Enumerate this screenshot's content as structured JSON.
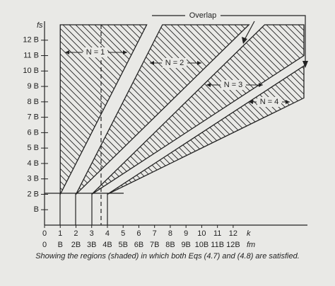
{
  "chart_data": {
    "type": "region",
    "y_label": "fs",
    "x_label": "k",
    "x2_label": "fm",
    "annotation": "Overlap",
    "caption": "Showing the regions (shaded) in which both Eqs (4.7) and (4.8) are satisfied.",
    "xlim": [
      0,
      16.5
    ],
    "ylim": [
      0,
      13
    ],
    "xticks": [
      0,
      1,
      2,
      3,
      4,
      5,
      6,
      7,
      8,
      9,
      10,
      11,
      12
    ],
    "x2ticks": [
      {
        "value": 0,
        "label": "0"
      },
      {
        "value": 1,
        "label": "B"
      },
      {
        "value": 2,
        "label": "2B"
      },
      {
        "value": 3,
        "label": "3B"
      },
      {
        "value": 4,
        "label": "4B"
      },
      {
        "value": 5,
        "label": "5B"
      },
      {
        "value": 6,
        "label": "6B"
      },
      {
        "value": 7,
        "label": "7B"
      },
      {
        "value": 8,
        "label": "8B"
      },
      {
        "value": 9,
        "label": "9B"
      },
      {
        "value": 10,
        "label": "10B"
      },
      {
        "value": 11,
        "label": "11B"
      },
      {
        "value": 12,
        "label": "12B"
      }
    ],
    "yticks": [
      {
        "value": 1,
        "label": "B"
      },
      {
        "value": 2,
        "label": "2 B"
      },
      {
        "value": 3,
        "label": "3 B"
      },
      {
        "value": 4,
        "label": "4 B"
      },
      {
        "value": 5,
        "label": "5 B"
      },
      {
        "value": 6,
        "label": "6 B"
      },
      {
        "value": 7,
        "label": "7 B"
      },
      {
        "value": 8,
        "label": "8 B"
      },
      {
        "value": 9,
        "label": "9 B"
      },
      {
        "value": 10,
        "label": "10 B"
      },
      {
        "value": 11,
        "label": "11 B"
      },
      {
        "value": 12,
        "label": "12 B"
      }
    ],
    "regions": [
      {
        "name": "N = 1",
        "x": [
          1,
          1,
          6.5
        ],
        "y": [
          2,
          13,
          13
        ]
      },
      {
        "name": "N = 2",
        "x": [
          2,
          7.5,
          13
        ],
        "y": [
          2,
          13,
          13
        ]
      },
      {
        "name": "N = 3",
        "x": [
          3,
          14,
          16.5,
          16.5
        ],
        "y": [
          2,
          13,
          13,
          11
        ]
      },
      {
        "name": "N = 4",
        "x": [
          4,
          16.5,
          16.5
        ],
        "y": [
          2,
          10.33,
          8.25
        ]
      }
    ]
  }
}
